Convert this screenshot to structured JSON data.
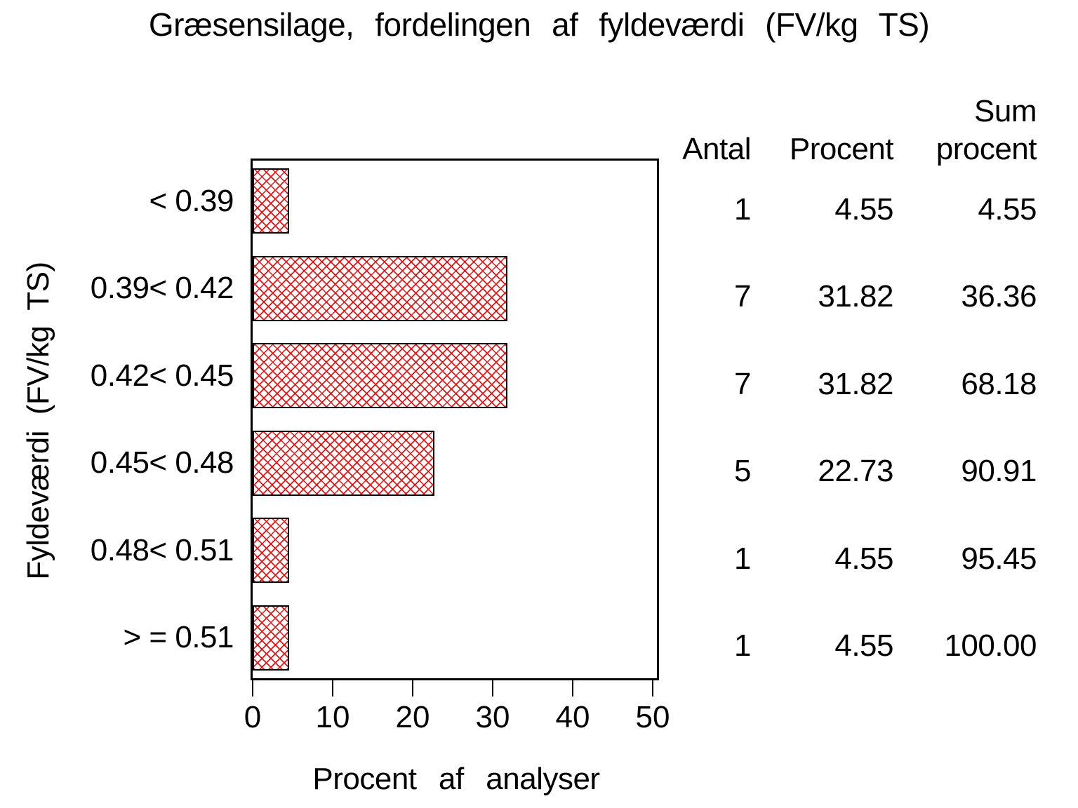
{
  "title": "Græsensilage, fordelingen af fyldeværdi (FV/kg TS)",
  "axes": {
    "x_label": "Procent af analyser",
    "y_label": "Fyldeværdi (FV/kg TS)",
    "x_tick_labels": [
      "0",
      "10",
      "20",
      "30",
      "40",
      "50"
    ]
  },
  "table": {
    "header_top_row": {
      "sum": "Sum"
    },
    "header_bottom_row": {
      "antal": "Antal",
      "procent": "Procent",
      "sum_procent": "procent"
    }
  },
  "colors": {
    "hatch_red": "#e81414",
    "bar_border": "#000000",
    "frame": "#000000",
    "text": "#000000",
    "background": "#ffffff"
  },
  "chart_data": {
    "type": "bar",
    "orientation": "horizontal",
    "title": "Græsensilage, fordelingen af fyldeværdi (FV/kg TS)",
    "xlabel": "Procent af analyser",
    "ylabel": "Fyldeværdi (FV/kg TS)",
    "xlim": [
      0,
      50
    ],
    "x_ticks": [
      0,
      10,
      20,
      30,
      40,
      50
    ],
    "grid": false,
    "legend": false,
    "bar_style": "red diagonal crosshatch with black outline",
    "categories": [
      "< 0.39",
      "0.39< 0.42",
      "0.42< 0.45",
      "0.45< 0.48",
      "0.48< 0.51",
      "> = 0.51"
    ],
    "values": [
      4.55,
      31.82,
      31.82,
      22.73,
      4.55,
      4.55
    ],
    "rows": [
      {
        "category": "< 0.39",
        "antal": "1",
        "procent": "4.55",
        "sum_procent": "4.55"
      },
      {
        "category": "0.39< 0.42",
        "antal": "7",
        "procent": "31.82",
        "sum_procent": "36.36"
      },
      {
        "category": "0.42< 0.45",
        "antal": "7",
        "procent": "31.82",
        "sum_procent": "68.18"
      },
      {
        "category": "0.45< 0.48",
        "antal": "5",
        "procent": "22.73",
        "sum_procent": "90.91"
      },
      {
        "category": "0.48< 0.51",
        "antal": "1",
        "procent": "4.55",
        "sum_procent": "95.45"
      },
      {
        "category": "> = 0.51",
        "antal": "1",
        "procent": "4.55",
        "sum_procent": "100.00"
      }
    ]
  }
}
